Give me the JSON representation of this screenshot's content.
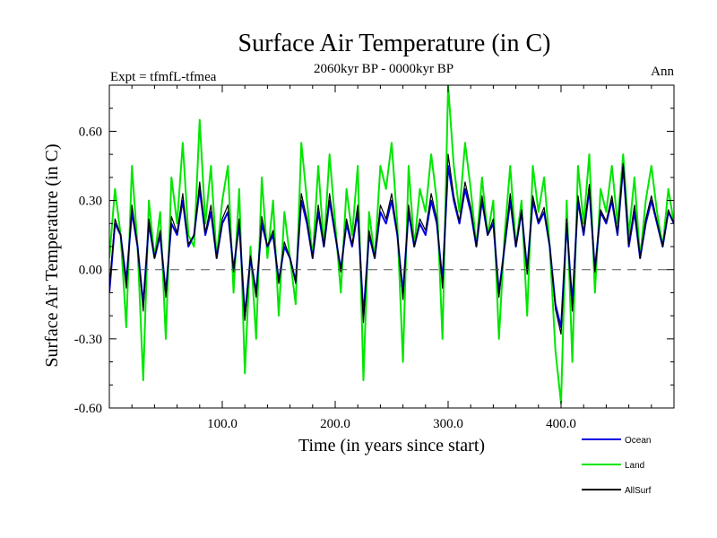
{
  "chart_data": {
    "type": "line",
    "title": "Surface Air Temperature (in C)",
    "subtitle": "2060kyr BP - 0000kyr BP",
    "left_note": "Expt = tfmfL-tfmea",
    "right_note": "Ann",
    "xlabel": "Time (in years since start)",
    "ylabel": "Surface Air Temperature (in C)",
    "xlim": [
      0,
      500
    ],
    "ylim": [
      -0.6,
      0.8
    ],
    "x_ticks": [
      100,
      200,
      300,
      400
    ],
    "x_tick_labels": [
      "100.0",
      "200.0",
      "300.0",
      "400.0"
    ],
    "y_ticks": [
      -0.6,
      -0.3,
      0.0,
      0.3,
      0.6
    ],
    "y_tick_labels": [
      "-0.60",
      "-0.30",
      "0.00",
      "0.30",
      "0.60"
    ],
    "zero_line": 0.0,
    "legend_position": "bottom-right",
    "series": [
      {
        "name": "Land",
        "color": "#00e600",
        "x": [
          0,
          5,
          10,
          15,
          20,
          25,
          30,
          35,
          40,
          45,
          50,
          55,
          60,
          65,
          70,
          75,
          80,
          85,
          90,
          95,
          100,
          105,
          110,
          115,
          120,
          125,
          130,
          135,
          140,
          145,
          150,
          155,
          160,
          165,
          170,
          175,
          180,
          185,
          190,
          195,
          200,
          205,
          210,
          215,
          220,
          225,
          230,
          235,
          240,
          245,
          250,
          255,
          260,
          265,
          270,
          275,
          280,
          285,
          290,
          295,
          300,
          305,
          310,
          315,
          320,
          325,
          330,
          335,
          340,
          345,
          350,
          355,
          360,
          365,
          370,
          375,
          380,
          385,
          390,
          395,
          400,
          405,
          410,
          415,
          420,
          425,
          430,
          435,
          440,
          445,
          450,
          455,
          460,
          465,
          470,
          475,
          480,
          485,
          490,
          495,
          500
        ],
        "values": [
          0.05,
          0.35,
          0.15,
          -0.25,
          0.45,
          0.1,
          -0.48,
          0.3,
          0.05,
          0.25,
          -0.3,
          0.4,
          0.2,
          0.55,
          0.15,
          0.1,
          0.65,
          0.2,
          0.45,
          0.05,
          0.3,
          0.45,
          -0.1,
          0.35,
          -0.45,
          0.1,
          -0.3,
          0.4,
          0.05,
          0.3,
          -0.2,
          0.25,
          0.05,
          -0.15,
          0.55,
          0.3,
          0.05,
          0.45,
          0.1,
          0.5,
          0.2,
          -0.1,
          0.35,
          0.15,
          0.45,
          -0.48,
          0.25,
          0.05,
          0.45,
          0.35,
          0.55,
          0.2,
          -0.4,
          0.45,
          0.1,
          0.35,
          0.25,
          0.5,
          0.3,
          -0.3,
          0.8,
          0.45,
          0.25,
          0.55,
          0.35,
          0.1,
          0.4,
          0.15,
          0.3,
          -0.3,
          0.15,
          0.45,
          0.1,
          0.3,
          -0.2,
          0.45,
          0.25,
          0.4,
          0.1,
          -0.35,
          -0.58,
          0.3,
          -0.4,
          0.45,
          0.2,
          0.5,
          -0.1,
          0.35,
          0.25,
          0.45,
          0.2,
          0.5,
          0.15,
          0.4,
          0.05,
          0.3,
          0.45,
          0.25,
          0.1,
          0.35,
          0.2
        ]
      },
      {
        "name": "Ocean",
        "color": "#0000e6",
        "x": [
          0,
          5,
          10,
          15,
          20,
          25,
          30,
          35,
          40,
          45,
          50,
          55,
          60,
          65,
          70,
          75,
          80,
          85,
          90,
          95,
          100,
          105,
          110,
          115,
          120,
          125,
          130,
          135,
          140,
          145,
          150,
          155,
          160,
          165,
          170,
          175,
          180,
          185,
          190,
          195,
          200,
          205,
          210,
          215,
          220,
          225,
          230,
          235,
          240,
          245,
          250,
          255,
          260,
          265,
          270,
          275,
          280,
          285,
          290,
          295,
          300,
          305,
          310,
          315,
          320,
          325,
          330,
          335,
          340,
          345,
          350,
          355,
          360,
          365,
          370,
          375,
          380,
          385,
          390,
          395,
          400,
          405,
          410,
          415,
          420,
          425,
          430,
          435,
          440,
          445,
          450,
          455,
          460,
          465,
          470,
          475,
          480,
          485,
          490,
          495,
          500
        ],
        "values": [
          -0.1,
          0.2,
          0.15,
          -0.05,
          0.25,
          0.1,
          -0.15,
          0.2,
          0.05,
          0.15,
          -0.1,
          0.2,
          0.15,
          0.3,
          0.1,
          0.15,
          0.35,
          0.15,
          0.25,
          0.05,
          0.2,
          0.25,
          0.0,
          0.2,
          -0.2,
          0.05,
          -0.1,
          0.2,
          0.1,
          0.15,
          -0.05,
          0.1,
          0.05,
          -0.05,
          0.3,
          0.2,
          0.05,
          0.25,
          0.1,
          0.3,
          0.15,
          0.0,
          0.2,
          0.1,
          0.25,
          -0.2,
          0.15,
          0.05,
          0.25,
          0.2,
          0.3,
          0.15,
          -0.1,
          0.25,
          0.1,
          0.2,
          0.15,
          0.3,
          0.2,
          -0.05,
          0.45,
          0.3,
          0.2,
          0.35,
          0.25,
          0.1,
          0.3,
          0.15,
          0.2,
          -0.1,
          0.1,
          0.3,
          0.1,
          0.25,
          0.0,
          0.3,
          0.2,
          0.25,
          0.1,
          -0.15,
          -0.25,
          0.2,
          -0.15,
          0.3,
          0.15,
          0.35,
          0.0,
          0.25,
          0.2,
          0.3,
          0.15,
          0.45,
          0.1,
          0.25,
          0.05,
          0.2,
          0.3,
          0.2,
          0.1,
          0.25,
          0.2
        ]
      },
      {
        "name": "AllSurf",
        "color": "#000000",
        "x": [
          0,
          5,
          10,
          15,
          20,
          25,
          30,
          35,
          40,
          45,
          50,
          55,
          60,
          65,
          70,
          75,
          80,
          85,
          90,
          95,
          100,
          105,
          110,
          115,
          120,
          125,
          130,
          135,
          140,
          145,
          150,
          155,
          160,
          165,
          170,
          175,
          180,
          185,
          190,
          195,
          200,
          205,
          210,
          215,
          220,
          225,
          230,
          235,
          240,
          245,
          250,
          255,
          260,
          265,
          270,
          275,
          280,
          285,
          290,
          295,
          300,
          305,
          310,
          315,
          320,
          325,
          330,
          335,
          340,
          345,
          350,
          355,
          360,
          365,
          370,
          375,
          380,
          385,
          390,
          395,
          400,
          405,
          410,
          415,
          420,
          425,
          430,
          435,
          440,
          445,
          450,
          455,
          460,
          465,
          470,
          475,
          480,
          485,
          490,
          495,
          500
        ],
        "values": [
          -0.08,
          0.22,
          0.15,
          -0.08,
          0.28,
          0.1,
          -0.18,
          0.22,
          0.05,
          0.17,
          -0.12,
          0.23,
          0.16,
          0.33,
          0.11,
          0.15,
          0.38,
          0.16,
          0.28,
          0.05,
          0.22,
          0.28,
          -0.01,
          0.22,
          -0.22,
          0.06,
          -0.12,
          0.23,
          0.1,
          0.17,
          -0.06,
          0.12,
          0.05,
          -0.06,
          0.33,
          0.22,
          0.05,
          0.28,
          0.1,
          0.33,
          0.16,
          -0.01,
          0.22,
          0.11,
          0.28,
          -0.23,
          0.17,
          0.05,
          0.28,
          0.22,
          0.33,
          0.16,
          -0.13,
          0.28,
          0.1,
          0.22,
          0.17,
          0.33,
          0.22,
          -0.08,
          0.5,
          0.32,
          0.21,
          0.38,
          0.27,
          0.1,
          0.32,
          0.15,
          0.22,
          -0.12,
          0.11,
          0.33,
          0.1,
          0.26,
          -0.02,
          0.32,
          0.21,
          0.27,
          0.1,
          -0.17,
          -0.28,
          0.22,
          -0.18,
          0.32,
          0.16,
          0.37,
          -0.01,
          0.26,
          0.21,
          0.32,
          0.16,
          0.46,
          0.11,
          0.28,
          0.05,
          0.22,
          0.32,
          0.21,
          0.1,
          0.26,
          0.2
        ]
      }
    ]
  }
}
